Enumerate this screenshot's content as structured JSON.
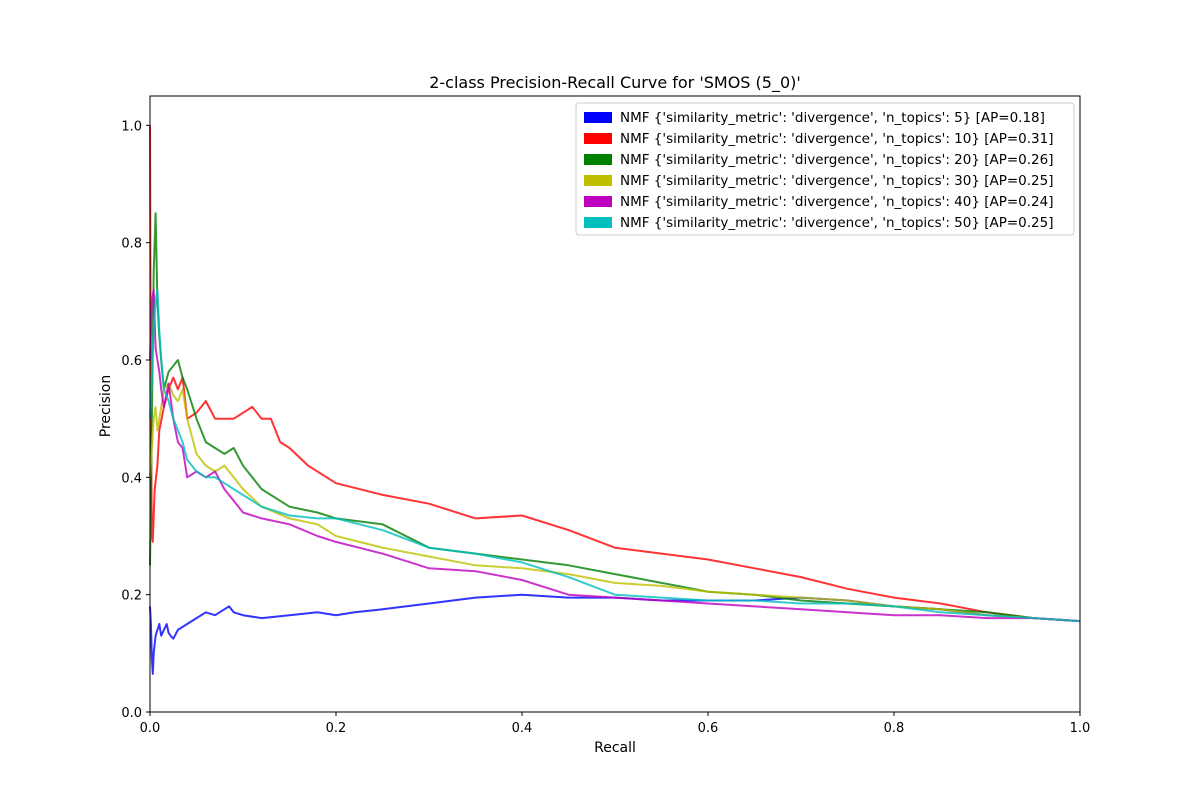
{
  "chart_data": {
    "type": "line",
    "title": "2-class Precision-Recall Curve for 'SMOS (5_0)'",
    "xlabel": "Recall",
    "ylabel": "Precision",
    "xlim": [
      0.0,
      1.0
    ],
    "ylim": [
      0.0,
      1.05
    ],
    "xticks": [
      "0.0",
      "0.2",
      "0.4",
      "0.6",
      "0.8",
      "1.0"
    ],
    "yticks": [
      "0.0",
      "0.2",
      "0.4",
      "0.6",
      "0.8",
      "1.0"
    ],
    "grid": false,
    "legend_position": "top-right",
    "series": [
      {
        "name": "NMF {'similarity_metric': 'divergence', 'n_topics': 5} [AP=0.18]",
        "color": "#0000ff",
        "x": [
          0,
          0.001,
          0.002,
          0.003,
          0.004,
          0.006,
          0.008,
          0.01,
          0.012,
          0.015,
          0.018,
          0.02,
          0.022,
          0.025,
          0.03,
          0.035,
          0.04,
          0.05,
          0.06,
          0.07,
          0.08,
          0.085,
          0.09,
          0.1,
          0.12,
          0.15,
          0.18,
          0.2,
          0.22,
          0.25,
          0.3,
          0.35,
          0.4,
          0.45,
          0.5,
          0.55,
          0.6,
          0.65,
          0.7,
          0.75,
          0.8,
          0.85,
          0.9,
          0.95,
          1.0
        ],
        "y": [
          0.18,
          0.15,
          0.09,
          0.065,
          0.1,
          0.13,
          0.14,
          0.15,
          0.13,
          0.14,
          0.15,
          0.135,
          0.13,
          0.125,
          0.14,
          0.145,
          0.15,
          0.16,
          0.17,
          0.165,
          0.175,
          0.18,
          0.17,
          0.165,
          0.16,
          0.165,
          0.17,
          0.165,
          0.17,
          0.175,
          0.185,
          0.195,
          0.2,
          0.195,
          0.195,
          0.19,
          0.19,
          0.19,
          0.195,
          0.19,
          0.18,
          0.175,
          0.165,
          0.16,
          0.155
        ]
      },
      {
        "name": "NMF {'similarity_metric': 'divergence', 'n_topics': 10} [AP=0.31]",
        "color": "#ff0000",
        "x": [
          0,
          0.001,
          0.002,
          0.003,
          0.005,
          0.008,
          0.01,
          0.015,
          0.02,
          0.025,
          0.03,
          0.035,
          0.04,
          0.05,
          0.06,
          0.07,
          0.08,
          0.09,
          0.1,
          0.11,
          0.12,
          0.13,
          0.14,
          0.15,
          0.17,
          0.2,
          0.25,
          0.3,
          0.35,
          0.4,
          0.45,
          0.5,
          0.55,
          0.6,
          0.65,
          0.7,
          0.75,
          0.8,
          0.85,
          0.9,
          0.95,
          1.0
        ],
        "y": [
          1.0,
          0.5,
          0.3,
          0.29,
          0.38,
          0.42,
          0.48,
          0.52,
          0.55,
          0.57,
          0.55,
          0.57,
          0.5,
          0.51,
          0.53,
          0.5,
          0.5,
          0.5,
          0.51,
          0.52,
          0.5,
          0.5,
          0.46,
          0.45,
          0.42,
          0.39,
          0.37,
          0.355,
          0.33,
          0.335,
          0.31,
          0.28,
          0.27,
          0.26,
          0.245,
          0.23,
          0.21,
          0.195,
          0.185,
          0.17,
          0.16,
          0.155
        ]
      },
      {
        "name": "NMF {'similarity_metric': 'divergence', 'n_topics': 20} [AP=0.26]",
        "color": "#008000",
        "x": [
          0,
          0.002,
          0.004,
          0.006,
          0.008,
          0.01,
          0.012,
          0.015,
          0.02,
          0.025,
          0.03,
          0.035,
          0.04,
          0.05,
          0.06,
          0.07,
          0.08,
          0.09,
          0.1,
          0.12,
          0.15,
          0.18,
          0.2,
          0.25,
          0.3,
          0.35,
          0.4,
          0.45,
          0.5,
          0.55,
          0.6,
          0.65,
          0.7,
          0.75,
          0.8,
          0.85,
          0.9,
          0.95,
          1.0
        ],
        "y": [
          0.25,
          0.5,
          0.75,
          0.85,
          0.7,
          0.64,
          0.6,
          0.55,
          0.58,
          0.59,
          0.6,
          0.57,
          0.55,
          0.5,
          0.46,
          0.45,
          0.44,
          0.45,
          0.42,
          0.38,
          0.35,
          0.34,
          0.33,
          0.32,
          0.28,
          0.27,
          0.26,
          0.25,
          0.235,
          0.22,
          0.205,
          0.2,
          0.19,
          0.185,
          0.18,
          0.175,
          0.17,
          0.16,
          0.155
        ]
      },
      {
        "name": "NMF {'similarity_metric': 'divergence', 'n_topics': 30} [AP=0.25]",
        "color": "#bfbf00",
        "x": [
          0,
          0.002,
          0.004,
          0.006,
          0.008,
          0.01,
          0.012,
          0.015,
          0.02,
          0.025,
          0.03,
          0.035,
          0.04,
          0.05,
          0.06,
          0.07,
          0.08,
          0.09,
          0.1,
          0.12,
          0.15,
          0.18,
          0.2,
          0.25,
          0.3,
          0.35,
          0.4,
          0.45,
          0.5,
          0.55,
          0.6,
          0.65,
          0.7,
          0.75,
          0.8,
          0.85,
          0.9,
          0.95,
          1.0
        ],
        "y": [
          0.4,
          0.45,
          0.5,
          0.52,
          0.48,
          0.5,
          0.52,
          0.55,
          0.56,
          0.54,
          0.53,
          0.55,
          0.5,
          0.44,
          0.42,
          0.41,
          0.42,
          0.4,
          0.38,
          0.35,
          0.33,
          0.32,
          0.3,
          0.28,
          0.265,
          0.25,
          0.245,
          0.235,
          0.22,
          0.215,
          0.205,
          0.2,
          0.195,
          0.19,
          0.18,
          0.175,
          0.165,
          0.16,
          0.155
        ]
      },
      {
        "name": "NMF {'similarity_metric': 'divergence', 'n_topics': 40} [AP=0.24]",
        "color": "#bf00bf",
        "x": [
          0,
          0.002,
          0.004,
          0.006,
          0.008,
          0.01,
          0.012,
          0.015,
          0.02,
          0.025,
          0.03,
          0.035,
          0.04,
          0.05,
          0.06,
          0.07,
          0.08,
          0.09,
          0.1,
          0.12,
          0.15,
          0.18,
          0.2,
          0.25,
          0.3,
          0.35,
          0.4,
          0.45,
          0.5,
          0.55,
          0.6,
          0.65,
          0.7,
          0.75,
          0.8,
          0.85,
          0.9,
          0.95,
          1.0
        ],
        "y": [
          0.6,
          0.7,
          0.72,
          0.62,
          0.6,
          0.58,
          0.55,
          0.52,
          0.56,
          0.5,
          0.46,
          0.45,
          0.4,
          0.41,
          0.4,
          0.41,
          0.38,
          0.36,
          0.34,
          0.33,
          0.32,
          0.3,
          0.29,
          0.27,
          0.245,
          0.24,
          0.225,
          0.2,
          0.195,
          0.19,
          0.185,
          0.18,
          0.175,
          0.17,
          0.165,
          0.165,
          0.16,
          0.16,
          0.155
        ]
      },
      {
        "name": "NMF {'similarity_metric': 'divergence', 'n_topics': 50} [AP=0.25]",
        "color": "#00bfbf",
        "x": [
          0,
          0.002,
          0.004,
          0.006,
          0.008,
          0.01,
          0.012,
          0.015,
          0.02,
          0.025,
          0.03,
          0.035,
          0.04,
          0.05,
          0.06,
          0.07,
          0.08,
          0.09,
          0.1,
          0.12,
          0.15,
          0.18,
          0.2,
          0.25,
          0.3,
          0.35,
          0.4,
          0.45,
          0.5,
          0.55,
          0.6,
          0.65,
          0.7,
          0.75,
          0.8,
          0.85,
          0.9,
          0.95,
          1.0
        ],
        "y": [
          0.5,
          0.58,
          0.65,
          0.7,
          0.72,
          0.65,
          0.6,
          0.55,
          0.53,
          0.5,
          0.48,
          0.46,
          0.43,
          0.41,
          0.4,
          0.4,
          0.39,
          0.38,
          0.37,
          0.35,
          0.335,
          0.33,
          0.33,
          0.31,
          0.28,
          0.27,
          0.255,
          0.23,
          0.2,
          0.195,
          0.19,
          0.19,
          0.185,
          0.185,
          0.18,
          0.17,
          0.165,
          0.16,
          0.155
        ]
      }
    ]
  }
}
